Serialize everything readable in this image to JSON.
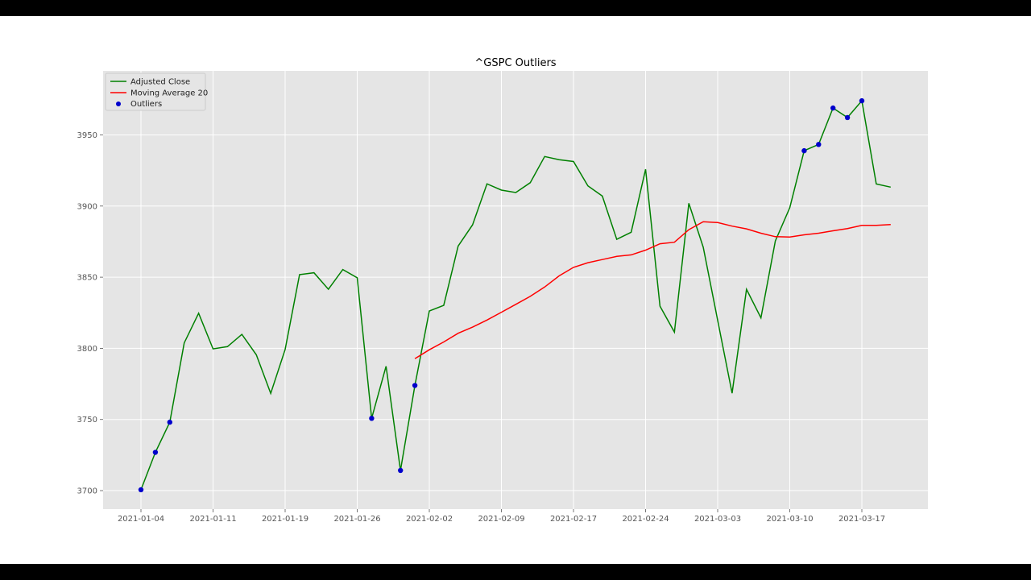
{
  "chart_data": {
    "type": "line",
    "title": "^GSPC Outliers",
    "xlabel": "",
    "ylabel": "",
    "ylim": [
      3687,
      3995
    ],
    "grid": true,
    "legend_position": "upper left",
    "legend": [
      {
        "label": "Adjusted Close",
        "type": "line",
        "color": "#008000"
      },
      {
        "label": "Moving Average 20",
        "type": "line",
        "color": "#ff0000"
      },
      {
        "label": "Outliers",
        "type": "scatter",
        "color": "#0000cc"
      }
    ],
    "x_ticks": [
      "2021-01-04",
      "2021-01-11",
      "2021-01-19",
      "2021-01-26",
      "2021-02-02",
      "2021-02-09",
      "2021-02-17",
      "2021-02-24",
      "2021-03-03",
      "2021-03-10",
      "2021-03-17"
    ],
    "x_tick_index": [
      0,
      5,
      10,
      15,
      20,
      25,
      30,
      35,
      40,
      45,
      50
    ],
    "y_ticks": [
      3700,
      3750,
      3800,
      3850,
      3900,
      3950
    ],
    "x": [
      "2021-01-04",
      "2021-01-05",
      "2021-01-06",
      "2021-01-07",
      "2021-01-08",
      "2021-01-11",
      "2021-01-12",
      "2021-01-13",
      "2021-01-14",
      "2021-01-15",
      "2021-01-19",
      "2021-01-20",
      "2021-01-21",
      "2021-01-22",
      "2021-01-25",
      "2021-01-26",
      "2021-01-27",
      "2021-01-28",
      "2021-01-29",
      "2021-02-01",
      "2021-02-02",
      "2021-02-03",
      "2021-02-04",
      "2021-02-05",
      "2021-02-08",
      "2021-02-09",
      "2021-02-10",
      "2021-02-11",
      "2021-02-12",
      "2021-02-16",
      "2021-02-17",
      "2021-02-18",
      "2021-02-19",
      "2021-02-22",
      "2021-02-23",
      "2021-02-24",
      "2021-02-25",
      "2021-02-26",
      "2021-03-01",
      "2021-03-02",
      "2021-03-03",
      "2021-03-04",
      "2021-03-05",
      "2021-03-08",
      "2021-03-09",
      "2021-03-10",
      "2021-03-11",
      "2021-03-12",
      "2021-03-15",
      "2021-03-16",
      "2021-03-17",
      "2021-03-18",
      "2021-03-19"
    ],
    "series": [
      {
        "name": "Adjusted Close",
        "color": "#008000",
        "values": [
          3700.6,
          3726.9,
          3748.1,
          3803.8,
          3824.7,
          3799.6,
          3801.2,
          3809.8,
          3795.5,
          3768.3,
          3799.2,
          3851.8,
          3853.1,
          3841.5,
          3855.4,
          3849.6,
          3750.8,
          3787.4,
          3714.2,
          3773.9,
          3826.3,
          3830.2,
          3871.9,
          3886.8,
          3915.6,
          3911.2,
          3909.5,
          3916.4,
          3934.8,
          3932.6,
          3931.3,
          3914.2,
          3907.0,
          3876.6,
          3881.6,
          3925.8,
          3829.6,
          3811.4,
          3902.0,
          3871.0,
          3819.7,
          3768.5,
          3841.5,
          3821.4,
          3875.5,
          3898.8,
          3938.9,
          3943.3,
          3968.9,
          3962.2,
          3974.0,
          3915.5,
          3913.3
        ]
      },
      {
        "name": "Moving Average 20",
        "color": "#ff0000",
        "start_index": 19,
        "values": [
          3792.7,
          3799.0,
          3804.5,
          3810.6,
          3814.9,
          3819.9,
          3825.4,
          3830.9,
          3836.5,
          3843.1,
          3850.9,
          3856.9,
          3860.2,
          3862.4,
          3864.6,
          3865.7,
          3869.0,
          3873.5,
          3874.6,
          3883.4,
          3889.0,
          3888.4,
          3885.9,
          3884.0,
          3880.9,
          3878.5,
          3878.2,
          3879.8,
          3880.9,
          3882.6,
          3884.2,
          3886.4,
          3886.4,
          3887.0
        ]
      },
      {
        "name": "Outliers",
        "color": "#0000cc",
        "type": "scatter",
        "points": [
          {
            "x": "2021-01-04",
            "index": 0,
            "value": 3700.6
          },
          {
            "x": "2021-01-05",
            "index": 1,
            "value": 3726.9
          },
          {
            "x": "2021-01-06",
            "index": 2,
            "value": 3748.1
          },
          {
            "x": "2021-01-27",
            "index": 16,
            "value": 3750.8
          },
          {
            "x": "2021-01-29",
            "index": 18,
            "value": 3714.2
          },
          {
            "x": "2021-02-01",
            "index": 19,
            "value": 3773.9
          },
          {
            "x": "2021-03-11",
            "index": 46,
            "value": 3938.9
          },
          {
            "x": "2021-03-12",
            "index": 47,
            "value": 3943.3
          },
          {
            "x": "2021-03-15",
            "index": 48,
            "value": 3968.9
          },
          {
            "x": "2021-03-16",
            "index": 49,
            "value": 3962.2
          },
          {
            "x": "2021-03-17",
            "index": 50,
            "value": 3974.0
          }
        ]
      }
    ]
  },
  "colors": {
    "plot_background": "#e5e5e5",
    "grid": "#ffffff",
    "adjusted_close": "#008000",
    "moving_average": "#ff0000",
    "outliers": "#0000cc"
  }
}
